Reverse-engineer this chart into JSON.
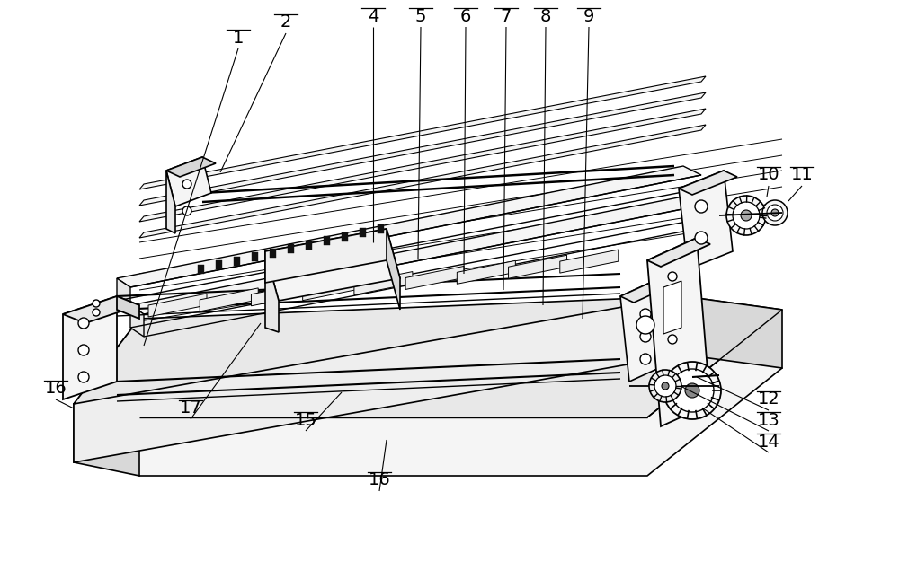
{
  "bg_color": "#ffffff",
  "lc": "#000000",
  "lw": 1.0,
  "fig_w": 10.0,
  "fig_h": 6.45,
  "light_fill": "#f5f5f5",
  "mid_fill": "#e8e8e8",
  "dark_fill": "#d8d8d8",
  "annotations": [
    [
      "1",
      265,
      42
    ],
    [
      "2",
      318,
      25
    ],
    [
      "4",
      415,
      18
    ],
    [
      "5",
      468,
      18
    ],
    [
      "6",
      518,
      18
    ],
    [
      "7",
      563,
      18
    ],
    [
      "8",
      607,
      18
    ],
    [
      "9",
      655,
      18
    ],
    [
      "10",
      855,
      195
    ],
    [
      "11",
      892,
      195
    ],
    [
      "12",
      855,
      445
    ],
    [
      "13",
      855,
      468
    ],
    [
      "14",
      855,
      492
    ],
    [
      "15",
      340,
      468
    ],
    [
      "16_l",
      62,
      433
    ],
    [
      "16_b",
      422,
      535
    ],
    [
      "17",
      212,
      455
    ]
  ]
}
